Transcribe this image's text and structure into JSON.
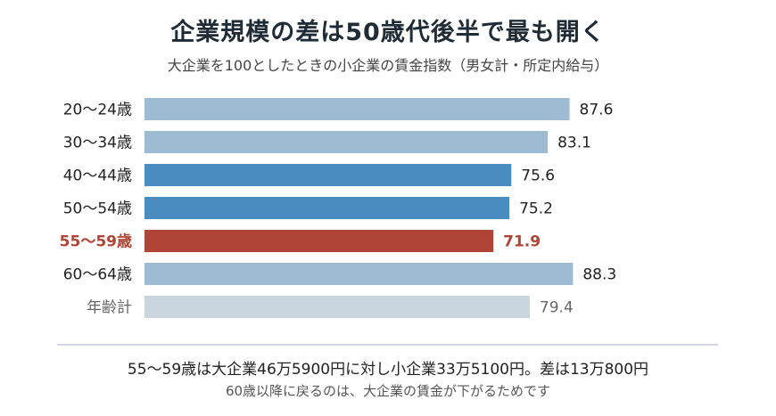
{
  "chart_data": {
    "type": "bar",
    "orientation": "horizontal",
    "title": "企業規模の差は50歳代後半で最も開く",
    "subtitle": "大企業を100としたときの小企業の賃金指数（男女計・所定内給与）",
    "categories": [
      "20〜24歳",
      "30〜34歳",
      "40〜44歳",
      "50〜54歳",
      "55〜59歳",
      "60〜64歳",
      "年齢計"
    ],
    "values": [
      87.6,
      83.1,
      75.6,
      75.2,
      71.9,
      88.3,
      79.4
    ],
    "value_labels": [
      "87.6",
      "83.1",
      "75.6",
      "75.2",
      "71.9",
      "88.3",
      "79.4"
    ],
    "bar_colors": [
      "#9dbcd4",
      "#9dbcd4",
      "#4a8bc0",
      "#4a8bc0",
      "#b04537",
      "#9dbcd4",
      "#c9d5df"
    ],
    "label_colors": [
      "#222222",
      "#222222",
      "#222222",
      "#222222",
      "#b04537",
      "#222222",
      "#666666"
    ],
    "highlight_index": 4,
    "xlim": [
      0,
      100
    ],
    "grid": false,
    "legend": "none"
  },
  "footer": {
    "main": "55〜59歳は大企業46万5900円に対し小企業33万5100円。差は13万800円",
    "sub": "60歳以降に戻るのは、大企業の賃金が下がるためです"
  }
}
